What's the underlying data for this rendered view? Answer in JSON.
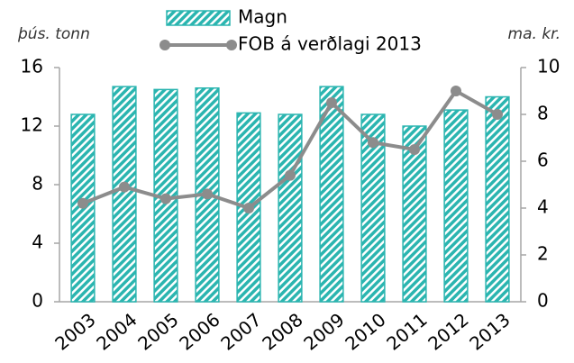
{
  "chart_data": {
    "type": "bar",
    "y_label": "þús. tonn",
    "y2_label": "ma. kr.",
    "categories": [
      "2003",
      "2004",
      "2005",
      "2006",
      "2007",
      "2008",
      "2009",
      "2010",
      "2011",
      "2012",
      "2013"
    ],
    "series": [
      {
        "name": "Magn",
        "type": "bar",
        "color": "#2bb5b0",
        "values": [
          12.8,
          14.7,
          14.5,
          14.6,
          12.9,
          12.8,
          14.7,
          12.8,
          12.0,
          13.1,
          14.0
        ]
      },
      {
        "name": "FOB á verðlagi 2013",
        "type": "line",
        "axis": "y2",
        "color": "#8c8c8c",
        "values": [
          4.2,
          4.9,
          4.4,
          4.6,
          4.0,
          5.4,
          8.5,
          6.8,
          6.5,
          9.0,
          8.0
        ]
      }
    ],
    "ylim": [
      0,
      16
    ],
    "yticks": [
      0,
      4,
      8,
      12,
      16
    ],
    "y2lim": [
      0,
      10
    ],
    "y2ticks": [
      0,
      2,
      4,
      6,
      8,
      10
    ],
    "legend": "top"
  }
}
